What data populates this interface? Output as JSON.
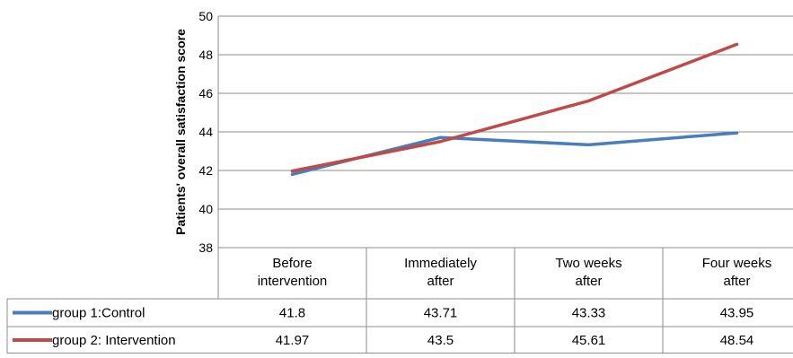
{
  "chart_data": {
    "type": "line",
    "ylabel": "Patients' overall satisfaction score",
    "ylim": [
      38,
      50
    ],
    "yticks": [
      38,
      40,
      42,
      44,
      46,
      48,
      50
    ],
    "grid": true,
    "legend_placement": "bottom-table",
    "categories": [
      [
        "Before",
        "intervention"
      ],
      [
        "Immediately",
        "after"
      ],
      [
        "Two weeks",
        "after"
      ],
      [
        "Four weeks",
        "after"
      ]
    ],
    "series": [
      {
        "name": "group 1:Control",
        "color": "#4a7ebb",
        "values": [
          41.8,
          43.71,
          43.33,
          43.95
        ],
        "labels": [
          "41.8",
          "43.71",
          "43.33",
          "43.95"
        ]
      },
      {
        "name": "group 2: Intervention",
        "color": "#be4b48",
        "values": [
          41.97,
          43.5,
          45.61,
          48.54
        ],
        "labels": [
          "41.97",
          "43.5",
          "45.61",
          "48.54"
        ]
      }
    ]
  }
}
